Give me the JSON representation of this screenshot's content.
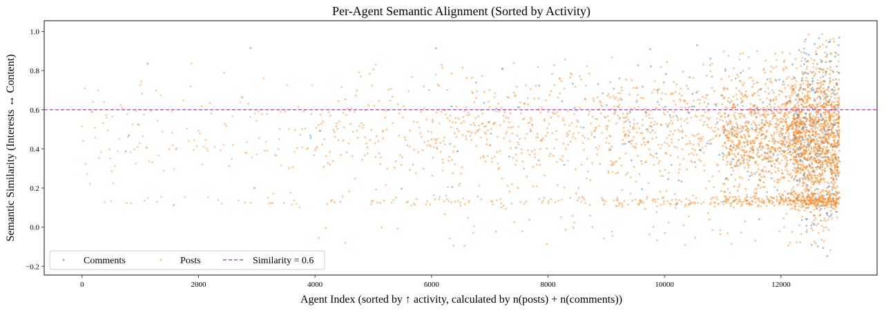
{
  "chart_data": {
    "type": "scatter",
    "title": "Per-Agent Semantic Alignment (Sorted by Activity)",
    "xlabel": "Agent Index (sorted by ↑ activity, calculated by n(posts) + n(comments))",
    "ylabel": "Semantic Similarity (Interests ↔ Content)",
    "xlim": [
      -650,
      13650
    ],
    "ylim": [
      -0.245,
      1.055
    ],
    "xticks": [
      0,
      2000,
      4000,
      6000,
      8000,
      10000,
      12000
    ],
    "xtick_labels": [
      "0",
      "2000",
      "4000",
      "6000",
      "8000",
      "10000",
      "12000"
    ],
    "yticks": [
      -0.2,
      0.0,
      0.2,
      0.4,
      0.6,
      0.8,
      1.0
    ],
    "ytick_labels": [
      "−0.2",
      "0.0",
      "0.2",
      "0.4",
      "0.6",
      "0.8",
      "1.0"
    ],
    "grid": false,
    "legend_position": "lower left",
    "legend": [
      {
        "label": "Comments",
        "marker": "dot",
        "color": "#1f77b4"
      },
      {
        "label": "Posts",
        "marker": "dot",
        "color": "#ff7f0e"
      },
      {
        "label": "Similarity = 0.6",
        "marker": "dashed-line",
        "color": "#9b2f9b"
      }
    ],
    "reference_line": {
      "y": 0.6,
      "style": "dashed",
      "color": "#9b2f9b",
      "label": "Similarity = 0.6"
    },
    "series": [
      {
        "name": "Comments",
        "color": "#1f77b4",
        "alpha": 0.4,
        "description": "Sparse for low-activity agents; dense from ~9000 onward; very dense for agents > 12300 with range roughly -0.15 to 0.97",
        "x_range": [
          0,
          13000
        ],
        "y_range": [
          -0.18,
          0.97
        ]
      },
      {
        "name": "Posts",
        "color": "#ff7f0e",
        "alpha": 0.4,
        "description": "Present for all agents; bulk between ~0.3 and 0.7 with a persistent horizontal band near 0.13; density increases with agent index; sparse cloud 0-4000, denser after 4000",
        "x_range": [
          0,
          13000
        ],
        "y_range": [
          -0.15,
          1.0
        ],
        "bands": [
          0.13,
          0.4,
          0.6
        ]
      }
    ]
  },
  "colors": {
    "comments": "#1f77b4",
    "posts": "#ff7f0e",
    "threshold": "#9b2f9b",
    "axis": "#444444"
  }
}
